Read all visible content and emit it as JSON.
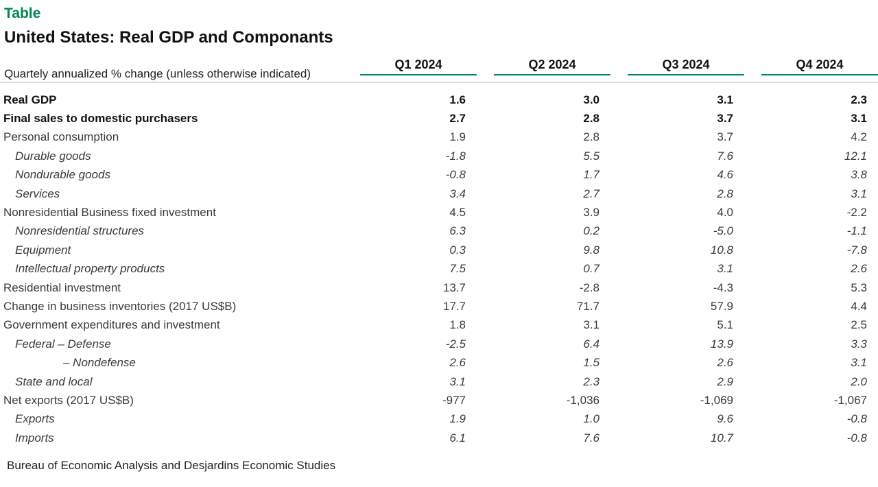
{
  "page": {
    "kicker": "Table",
    "title": "United States: Real GDP and Componants",
    "subtitle": "Quartely annualized % change (unless otherwise indicated)",
    "source": "Bureau of Economic Analysis and Desjardins Economic Studies"
  },
  "colors": {
    "accent_green": "#00884F",
    "separator_gray": "#7b8893",
    "title_black": "#111111",
    "body_gray": "#3a3a3a"
  },
  "chart_data": {
    "type": "table",
    "title": "United States: Real GDP and Componants",
    "subtitle": "Quartely annualized % change (unless otherwise indicated)",
    "legend_position": "none",
    "grid": false,
    "columns": [
      "Q1 2024",
      "Q2 2024",
      "Q3 2024",
      "Q4 2024"
    ],
    "rows": [
      {
        "label": "Real GDP",
        "style": "bold",
        "indent": 0,
        "values": [
          "1.6",
          "3.0",
          "3.1",
          "2.3"
        ]
      },
      {
        "label": "Final sales to domestic purchasers",
        "style": "bold",
        "indent": 0,
        "values": [
          "2.7",
          "2.8",
          "3.7",
          "3.1"
        ]
      },
      {
        "label": "Personal consumption",
        "style": "plain",
        "indent": 0,
        "values": [
          "1.9",
          "2.8",
          "3.7",
          "4.2"
        ]
      },
      {
        "label": "Durable goods",
        "style": "italic",
        "indent": 1,
        "values": [
          "-1.8",
          "5.5",
          "7.6",
          "12.1"
        ]
      },
      {
        "label": "Nondurable goods",
        "style": "italic",
        "indent": 1,
        "values": [
          "-0.8",
          "1.7",
          "4.6",
          "3.8"
        ]
      },
      {
        "label": "Services",
        "style": "italic",
        "indent": 1,
        "values": [
          "3.4",
          "2.7",
          "2.8",
          "3.1"
        ]
      },
      {
        "label": "Nonresidential Business fixed investment",
        "style": "plain",
        "indent": 0,
        "values": [
          "4.5",
          "3.9",
          "4.0",
          "-2.2"
        ]
      },
      {
        "label": "Nonresidential structures",
        "style": "italic",
        "indent": 1,
        "values": [
          "6.3",
          "0.2",
          "-5.0",
          "-1.1"
        ]
      },
      {
        "label": "Equipment",
        "style": "italic",
        "indent": 1,
        "values": [
          "0.3",
          "9.8",
          "10.8",
          "-7.8"
        ]
      },
      {
        "label": "Intellectual property products",
        "style": "italic",
        "indent": 1,
        "values": [
          "7.5",
          "0.7",
          "3.1",
          "2.6"
        ]
      },
      {
        "label": "Residential investment",
        "style": "plain",
        "indent": 0,
        "values": [
          "13.7",
          "-2.8",
          "-4.3",
          "5.3"
        ]
      },
      {
        "label": "Change in business inventories (2017 US$B)",
        "style": "plain",
        "indent": 0,
        "values": [
          "17.7",
          "71.7",
          "57.9",
          "4.4"
        ]
      },
      {
        "label": "Government expenditures and investment",
        "style": "plain",
        "indent": 0,
        "values": [
          "1.8",
          "3.1",
          "5.1",
          "2.5"
        ]
      },
      {
        "label": "Federal – Defense",
        "style": "italic",
        "indent": 1,
        "values": [
          "-2.5",
          "6.4",
          "13.9",
          "3.3"
        ]
      },
      {
        "label": "– Nondefense",
        "style": "italic",
        "indent": 2,
        "values": [
          "2.6",
          "1.5",
          "2.6",
          "3.1"
        ]
      },
      {
        "label": "State and local",
        "style": "italic",
        "indent": 1,
        "values": [
          "3.1",
          "2.3",
          "2.9",
          "2.0"
        ]
      },
      {
        "label": "Net exports (2017 US$B)",
        "style": "plain",
        "indent": 0,
        "values": [
          "-977",
          "-1,036",
          "-1,069",
          "-1,067"
        ]
      },
      {
        "label": "Exports",
        "style": "italic",
        "indent": 1,
        "values": [
          "1.9",
          "1.0",
          "9.6",
          "-0.8"
        ]
      },
      {
        "label": "Imports",
        "style": "italic",
        "indent": 1,
        "values": [
          "6.1",
          "7.6",
          "10.7",
          "-0.8"
        ]
      }
    ]
  }
}
